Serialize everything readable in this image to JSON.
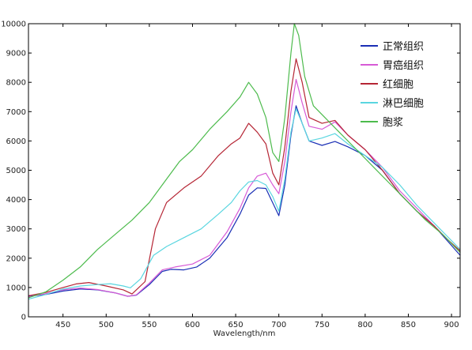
{
  "chart_data": {
    "type": "line",
    "title": "",
    "xlabel": "Wavelength/nm",
    "ylabel": "",
    "xlim": [
      410,
      910
    ],
    "ylim": [
      0,
      10000
    ],
    "xticks": [
      "450",
      "500",
      "550",
      "600",
      "650",
      "700",
      "750",
      "800",
      "850",
      "900"
    ],
    "yticks": [
      "0",
      "1000",
      "2000",
      "3000",
      "4000",
      "5000",
      "6000",
      "7000",
      "8000",
      "9000",
      "10000"
    ],
    "grid": false,
    "legend": "top-right",
    "series": [
      {
        "name": "正常组织",
        "color": "#1a2fb5",
        "points": [
          [
            410,
            700
          ],
          [
            430,
            760
          ],
          [
            450,
            880
          ],
          [
            470,
            950
          ],
          [
            490,
            920
          ],
          [
            510,
            820
          ],
          [
            525,
            700
          ],
          [
            535,
            740
          ],
          [
            550,
            1100
          ],
          [
            565,
            1550
          ],
          [
            575,
            1620
          ],
          [
            590,
            1600
          ],
          [
            605,
            1700
          ],
          [
            620,
            2000
          ],
          [
            640,
            2700
          ],
          [
            655,
            3500
          ],
          [
            665,
            4150
          ],
          [
            675,
            4400
          ],
          [
            685,
            4380
          ],
          [
            692,
            3950
          ],
          [
            700,
            3450
          ],
          [
            707,
            4500
          ],
          [
            714,
            6200
          ],
          [
            720,
            7200
          ],
          [
            727,
            6600
          ],
          [
            735,
            6000
          ],
          [
            750,
            5850
          ],
          [
            765,
            5980
          ],
          [
            780,
            5800
          ],
          [
            800,
            5500
          ],
          [
            820,
            5000
          ],
          [
            840,
            4200
          ],
          [
            860,
            3600
          ],
          [
            880,
            3100
          ],
          [
            895,
            2600
          ],
          [
            910,
            2100
          ]
        ]
      },
      {
        "name": "胃癌组织",
        "color": "#d75ad6",
        "points": [
          [
            410,
            680
          ],
          [
            430,
            790
          ],
          [
            450,
            920
          ],
          [
            470,
            980
          ],
          [
            490,
            930
          ],
          [
            510,
            820
          ],
          [
            525,
            700
          ],
          [
            535,
            750
          ],
          [
            550,
            1150
          ],
          [
            565,
            1600
          ],
          [
            580,
            1700
          ],
          [
            600,
            1800
          ],
          [
            620,
            2100
          ],
          [
            640,
            2900
          ],
          [
            655,
            3700
          ],
          [
            665,
            4400
          ],
          [
            675,
            4800
          ],
          [
            685,
            4900
          ],
          [
            693,
            4500
          ],
          [
            700,
            4200
          ],
          [
            707,
            5300
          ],
          [
            714,
            7000
          ],
          [
            720,
            8100
          ],
          [
            727,
            7300
          ],
          [
            735,
            6500
          ],
          [
            750,
            6400
          ],
          [
            765,
            6650
          ],
          [
            780,
            6200
          ],
          [
            800,
            5700
          ],
          [
            820,
            5100
          ],
          [
            840,
            4300
          ],
          [
            860,
            3700
          ],
          [
            880,
            3100
          ],
          [
            895,
            2650
          ],
          [
            910,
            2200
          ]
        ]
      },
      {
        "name": "红细胞",
        "color": "#b52534",
        "points": [
          [
            410,
            720
          ],
          [
            430,
            830
          ],
          [
            450,
            1000
          ],
          [
            465,
            1120
          ],
          [
            480,
            1170
          ],
          [
            500,
            1050
          ],
          [
            520,
            920
          ],
          [
            530,
            780
          ],
          [
            545,
            1200
          ],
          [
            557,
            3000
          ],
          [
            570,
            3900
          ],
          [
            590,
            4400
          ],
          [
            610,
            4800
          ],
          [
            630,
            5500
          ],
          [
            645,
            5900
          ],
          [
            655,
            6100
          ],
          [
            665,
            6600
          ],
          [
            675,
            6300
          ],
          [
            685,
            5900
          ],
          [
            693,
            4900
          ],
          [
            700,
            4500
          ],
          [
            707,
            5800
          ],
          [
            714,
            7700
          ],
          [
            720,
            8800
          ],
          [
            727,
            8000
          ],
          [
            735,
            6800
          ],
          [
            750,
            6600
          ],
          [
            765,
            6700
          ],
          [
            780,
            6200
          ],
          [
            800,
            5700
          ],
          [
            820,
            5000
          ],
          [
            840,
            4200
          ],
          [
            860,
            3600
          ],
          [
            880,
            3100
          ],
          [
            895,
            2650
          ],
          [
            910,
            2250
          ]
        ]
      },
      {
        "name": "淋巴细胞",
        "color": "#5ad6e0",
        "points": [
          [
            410,
            600
          ],
          [
            430,
            760
          ],
          [
            450,
            950
          ],
          [
            470,
            1050
          ],
          [
            490,
            1100
          ],
          [
            505,
            1130
          ],
          [
            520,
            1050
          ],
          [
            528,
            990
          ],
          [
            540,
            1300
          ],
          [
            555,
            2100
          ],
          [
            570,
            2400
          ],
          [
            590,
            2700
          ],
          [
            610,
            3000
          ],
          [
            630,
            3500
          ],
          [
            645,
            3900
          ],
          [
            655,
            4300
          ],
          [
            665,
            4600
          ],
          [
            675,
            4650
          ],
          [
            685,
            4500
          ],
          [
            693,
            4100
          ],
          [
            700,
            3600
          ],
          [
            707,
            4700
          ],
          [
            714,
            6300
          ],
          [
            720,
            7100
          ],
          [
            727,
            6600
          ],
          [
            735,
            6000
          ],
          [
            750,
            6100
          ],
          [
            765,
            6250
          ],
          [
            780,
            5900
          ],
          [
            800,
            5500
          ],
          [
            820,
            5100
          ],
          [
            840,
            4500
          ],
          [
            860,
            3800
          ],
          [
            880,
            3200
          ],
          [
            895,
            2750
          ],
          [
            910,
            2300
          ]
        ]
      },
      {
        "name": "胞浆",
        "color": "#4dbb4d",
        "points": [
          [
            410,
            650
          ],
          [
            430,
            850
          ],
          [
            450,
            1250
          ],
          [
            470,
            1700
          ],
          [
            490,
            2300
          ],
          [
            510,
            2800
          ],
          [
            530,
            3300
          ],
          [
            550,
            3900
          ],
          [
            570,
            4700
          ],
          [
            585,
            5300
          ],
          [
            600,
            5700
          ],
          [
            620,
            6400
          ],
          [
            640,
            7000
          ],
          [
            655,
            7500
          ],
          [
            665,
            8000
          ],
          [
            675,
            7600
          ],
          [
            685,
            6800
          ],
          [
            693,
            5600
          ],
          [
            700,
            5300
          ],
          [
            707,
            6800
          ],
          [
            714,
            9000
          ],
          [
            718,
            10000
          ],
          [
            723,
            9600
          ],
          [
            730,
            8200
          ],
          [
            740,
            7200
          ],
          [
            755,
            6750
          ],
          [
            770,
            6300
          ],
          [
            790,
            5700
          ],
          [
            810,
            5100
          ],
          [
            830,
            4500
          ],
          [
            850,
            3900
          ],
          [
            870,
            3300
          ],
          [
            890,
            2800
          ],
          [
            910,
            2200
          ]
        ]
      }
    ]
  }
}
